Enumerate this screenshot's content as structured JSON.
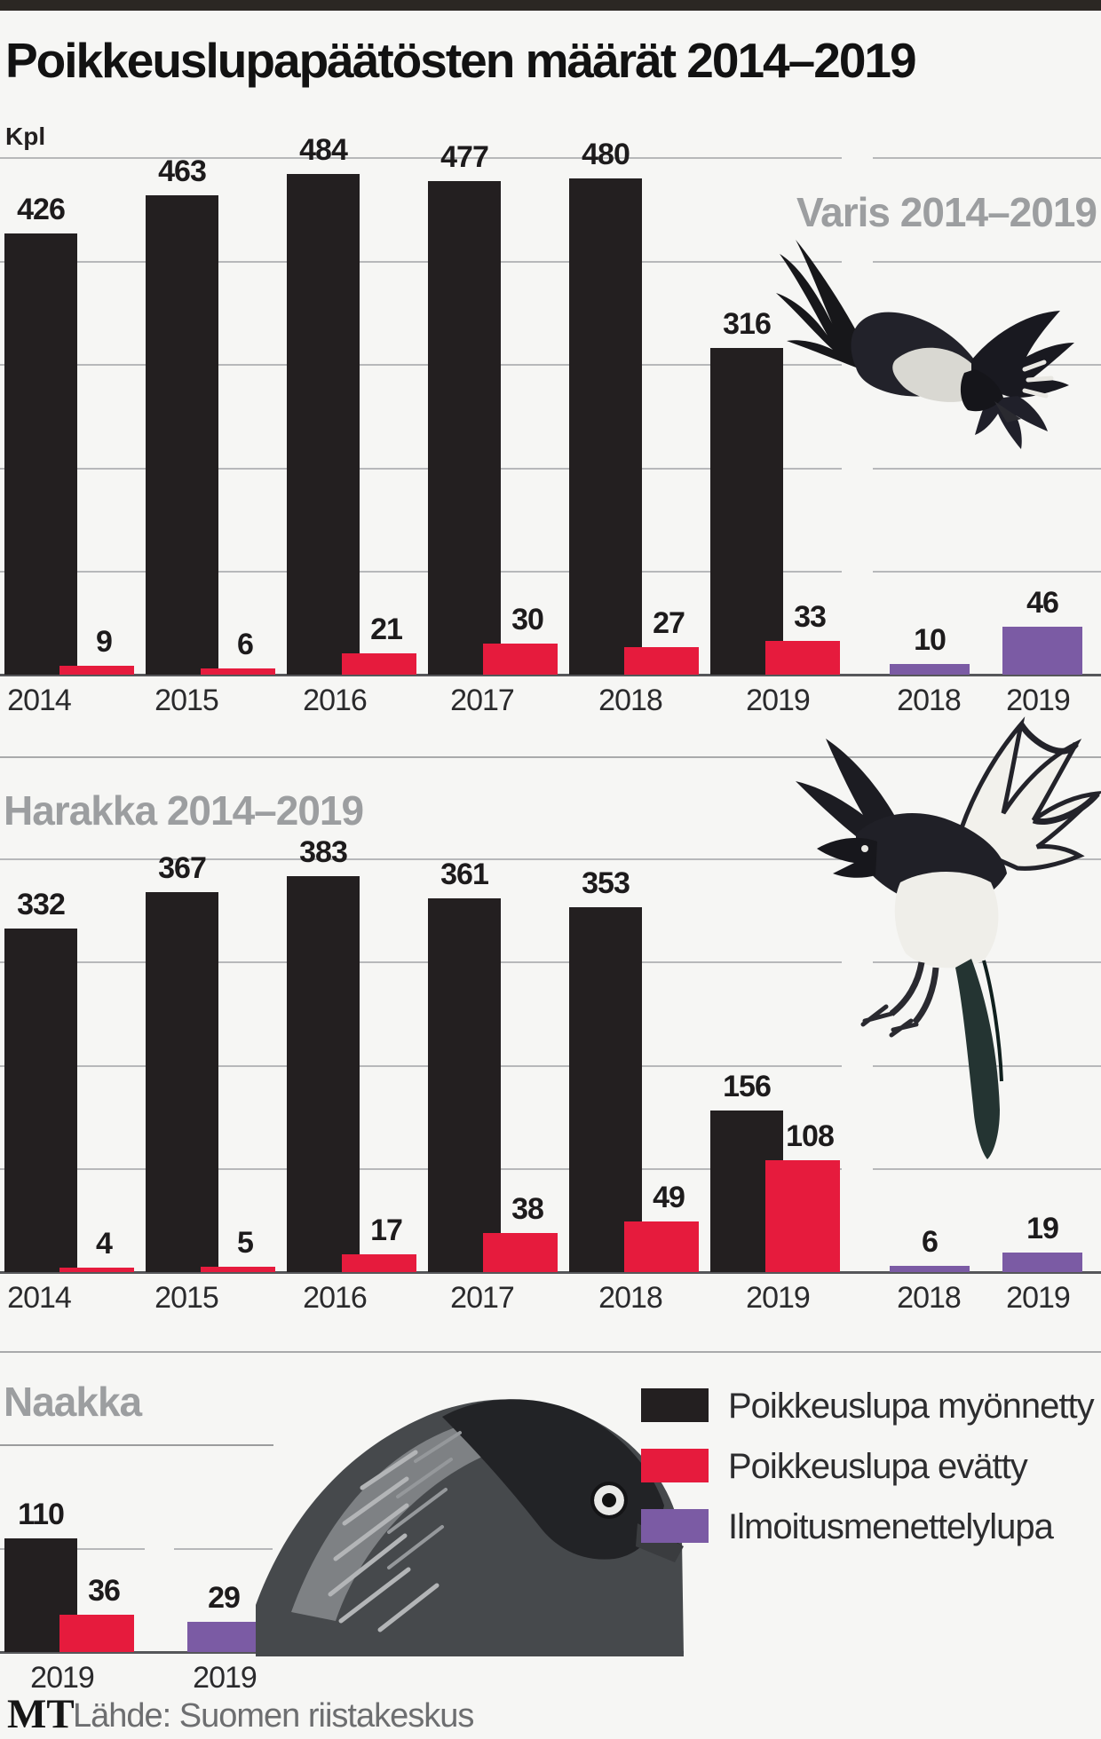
{
  "page": {
    "title": "Poikkeuslupapäätösten määrät 2014–2019",
    "unit_label": "Kpl",
    "source_logo": "MT",
    "source": "Lähde: Suomen riistakeskus"
  },
  "legend": [
    {
      "label": "Poikkeuslupa myönnetty",
      "color": "#231f20"
    },
    {
      "label": "Poikkeuslupa evätty",
      "color": "#e61b3d"
    },
    {
      "label": "Ilmoitusmenettelylupa",
      "color": "#7b5ba4"
    }
  ],
  "chart_data": [
    {
      "type": "bar",
      "title": "Varis 2014–2019",
      "categories": [
        "2014",
        "2015",
        "2016",
        "2017",
        "2018",
        "2019"
      ],
      "series": [
        {
          "name": "Poikkeuslupa myönnetty",
          "color": "#231f20",
          "values": [
            426,
            463,
            484,
            477,
            480,
            316
          ]
        },
        {
          "name": "Poikkeuslupa evätty",
          "color": "#e61b3d",
          "values": [
            9,
            6,
            21,
            30,
            27,
            33
          ]
        }
      ],
      "notification_permits": {
        "name": "Ilmoitusmenettelylupa",
        "color": "#7b5ba4",
        "categories": [
          "2018",
          "2019"
        ],
        "values": [
          10,
          46
        ]
      },
      "ylabel": "Kpl",
      "ylim": [
        0,
        500
      ],
      "gridlines": [
        100,
        200,
        300,
        400,
        500
      ],
      "grid": "on",
      "value_labels": "on"
    },
    {
      "type": "bar",
      "title": "Harakka 2014–2019",
      "categories": [
        "2014",
        "2015",
        "2016",
        "2017",
        "2018",
        "2019"
      ],
      "series": [
        {
          "name": "Poikkeuslupa myönnetty",
          "color": "#231f20",
          "values": [
            332,
            367,
            383,
            361,
            353,
            156
          ]
        },
        {
          "name": "Poikkeuslupa evätty",
          "color": "#e61b3d",
          "values": [
            4,
            5,
            17,
            38,
            49,
            108
          ]
        }
      ],
      "notification_permits": {
        "name": "Ilmoitusmenettelylupa",
        "color": "#7b5ba4",
        "categories": [
          "2018",
          "2019"
        ],
        "values": [
          6,
          19
        ]
      },
      "ylabel": "Kpl",
      "ylim": [
        0,
        450
      ],
      "gridlines": [
        100,
        200,
        300,
        400
      ],
      "grid": "on",
      "value_labels": "on"
    },
    {
      "type": "bar",
      "title": "Naakka",
      "categories": [
        "2019"
      ],
      "series": [
        {
          "name": "Poikkeuslupa myönnetty",
          "color": "#231f20",
          "values": [
            110
          ]
        },
        {
          "name": "Poikkeuslupa evätty",
          "color": "#e61b3d",
          "values": [
            36
          ]
        }
      ],
      "notification_permits": {
        "name": "Ilmoitusmenettelylupa",
        "color": "#7b5ba4",
        "categories": [
          "2019"
        ],
        "values": [
          29
        ]
      },
      "ylabel": "Kpl",
      "ylim": [
        0,
        120
      ],
      "gridlines": [
        100
      ],
      "grid": "on",
      "value_labels": "on"
    }
  ]
}
